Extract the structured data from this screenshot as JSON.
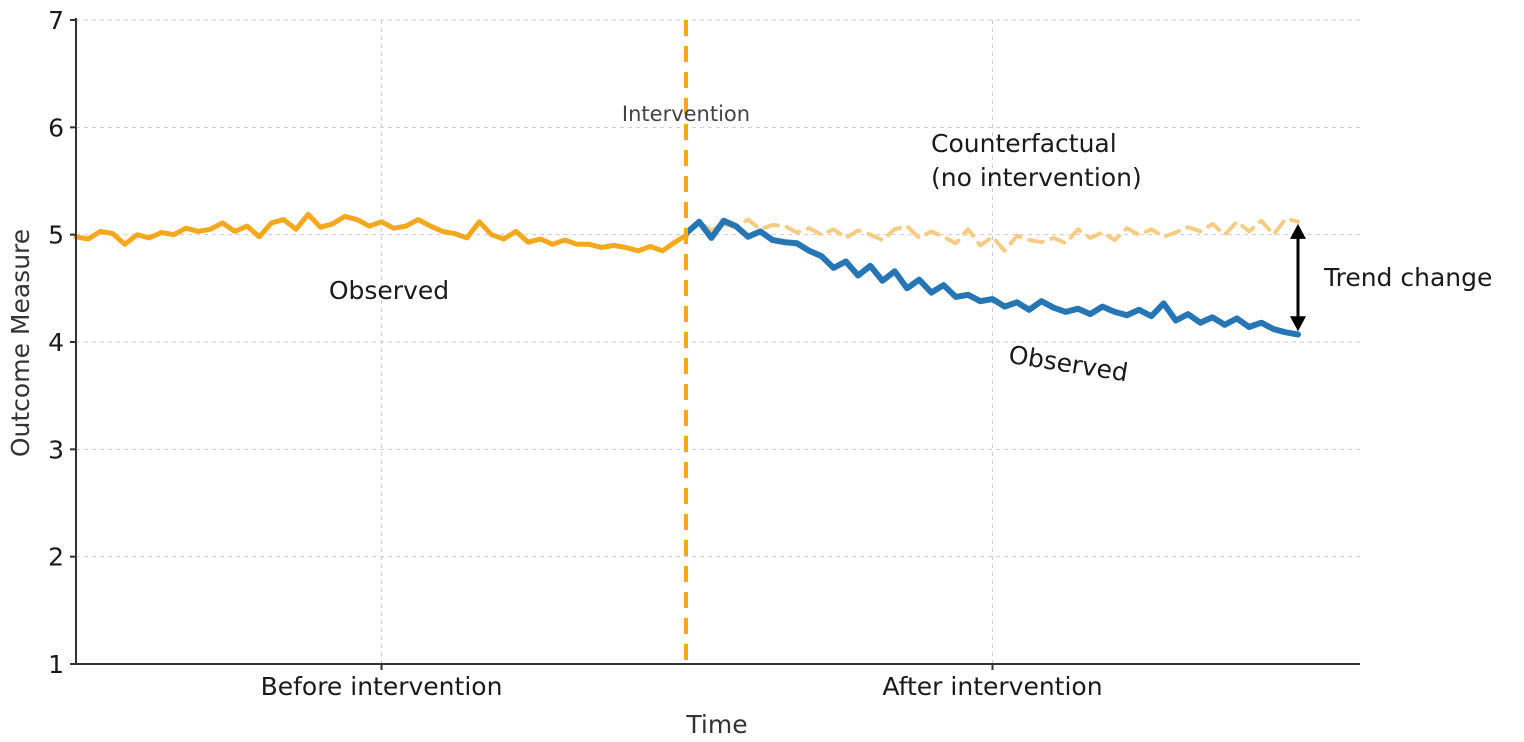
{
  "colors": {
    "pre": "#f4a81d",
    "post": "#2676b6",
    "counterfactual": "#f8cb83",
    "intervention_line": "#f4a81d",
    "arrow": "#000000"
  },
  "chart_data": {
    "type": "line",
    "xlabel": "Time",
    "ylabel": "Outcome Measure",
    "ylim": [
      1,
      7
    ],
    "yticks": [
      "1",
      "2",
      "3",
      "4",
      "5",
      "6",
      "7"
    ],
    "xlim": [
      0,
      100
    ],
    "xtick_positions": [
      25,
      75
    ],
    "xticks": [
      "Before intervention",
      "After intervention"
    ],
    "grid": true,
    "intervention_x": 50,
    "series": [
      {
        "key": "observed_pre",
        "x": [
          0,
          1,
          2,
          3,
          4,
          5,
          6,
          7,
          8,
          9,
          10,
          11,
          12,
          13,
          14,
          15,
          16,
          17,
          18,
          19,
          20,
          21,
          22,
          23,
          24,
          25,
          26,
          27,
          28,
          29,
          30,
          31,
          32,
          33,
          34,
          35,
          36,
          37,
          38,
          39,
          40,
          41,
          42,
          43,
          44,
          45,
          46,
          47,
          48,
          49,
          50
        ],
        "values": [
          4.98,
          4.96,
          5.03,
          5.01,
          4.91,
          5.0,
          4.97,
          5.02,
          5.0,
          5.06,
          5.03,
          5.05,
          5.11,
          5.03,
          5.08,
          4.98,
          5.11,
          5.14,
          5.05,
          5.19,
          5.07,
          5.1,
          5.17,
          5.14,
          5.08,
          5.12,
          5.06,
          5.08,
          5.14,
          5.08,
          5.03,
          5.01,
          4.97,
          5.12,
          5.0,
          4.96,
          5.03,
          4.93,
          4.96,
          4.91,
          4.95,
          4.91,
          4.91,
          4.88,
          4.9,
          4.88,
          4.85,
          4.89,
          4.85,
          4.93,
          5.0
        ]
      },
      {
        "key": "observed_post",
        "x": [
          50,
          51,
          52,
          53,
          54,
          55,
          56,
          57,
          58,
          59,
          60,
          61,
          62,
          63,
          64,
          65,
          66,
          67,
          68,
          69,
          70,
          71,
          72,
          73,
          74,
          75,
          76,
          77,
          78,
          79,
          80,
          81,
          82,
          83,
          84,
          85,
          86,
          87,
          88,
          89,
          90,
          91,
          92,
          93,
          94,
          95,
          96,
          97,
          98,
          99,
          100
        ],
        "values": [
          5.02,
          5.12,
          4.97,
          5.13,
          5.08,
          4.98,
          5.03,
          4.95,
          4.93,
          4.92,
          4.85,
          4.8,
          4.69,
          4.75,
          4.62,
          4.71,
          4.57,
          4.66,
          4.5,
          4.58,
          4.46,
          4.53,
          4.42,
          4.44,
          4.38,
          4.4,
          4.33,
          4.37,
          4.3,
          4.38,
          4.32,
          4.28,
          4.31,
          4.26,
          4.33,
          4.28,
          4.25,
          4.3,
          4.24,
          4.36,
          4.2,
          4.26,
          4.18,
          4.23,
          4.16,
          4.22,
          4.14,
          4.18,
          4.12,
          4.09,
          4.07
        ]
      },
      {
        "key": "counterfactual",
        "x": [
          50,
          51,
          52,
          53,
          54,
          55,
          56,
          57,
          58,
          59,
          60,
          61,
          62,
          63,
          64,
          65,
          66,
          67,
          68,
          69,
          70,
          71,
          72,
          73,
          74,
          75,
          76,
          77,
          78,
          79,
          80,
          81,
          82,
          83,
          84,
          85,
          86,
          87,
          88,
          89,
          90,
          91,
          92,
          93,
          94,
          95,
          96,
          97,
          98,
          99,
          100
        ],
        "values": [
          5.02,
          5.12,
          5.04,
          5.1,
          5.07,
          5.14,
          5.05,
          5.09,
          5.08,
          5.02,
          5.06,
          5.0,
          5.05,
          4.97,
          5.04,
          5.0,
          4.95,
          5.05,
          5.08,
          4.97,
          5.03,
          4.98,
          4.92,
          5.05,
          4.9,
          4.98,
          4.85,
          4.99,
          4.95,
          4.93,
          4.97,
          4.92,
          5.05,
          4.97,
          5.02,
          4.95,
          5.06,
          5.0,
          5.05,
          4.98,
          5.02,
          5.07,
          5.03,
          5.1,
          5.0,
          5.12,
          5.03,
          5.13,
          5.0,
          5.15,
          5.12
        ]
      }
    ],
    "annotations": {
      "intervention": "Intervention",
      "observed_pre": "Observed",
      "observed_post": "Observed",
      "counterfactual_line1": "Counterfactual",
      "counterfactual_line2": "(no intervention)",
      "trend_change": "Trend change"
    },
    "trend_arrow": {
      "x": 100,
      "y_from": 5.1,
      "y_to": 4.1
    }
  }
}
